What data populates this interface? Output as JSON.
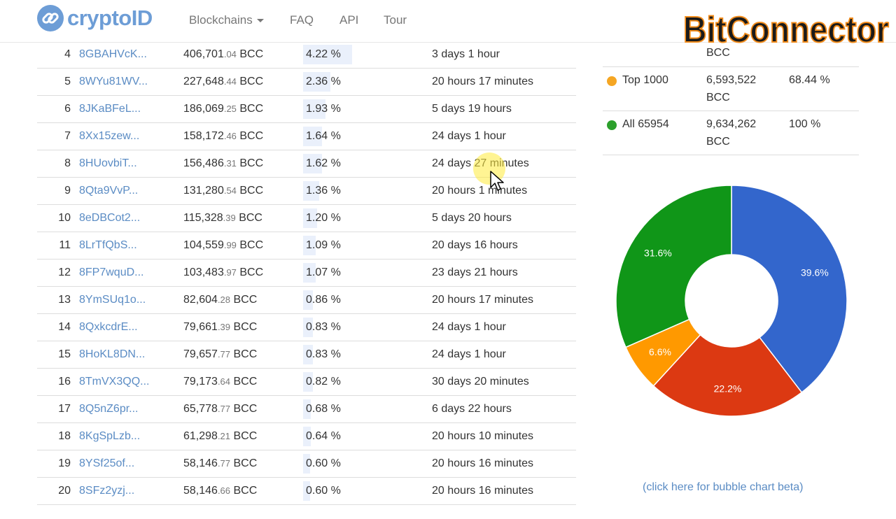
{
  "header": {
    "logo": "cryptoID",
    "nav": [
      {
        "label": "Blockchains",
        "dropdown": true
      },
      {
        "label": "FAQ"
      },
      {
        "label": "API"
      },
      {
        "label": "Tour"
      }
    ],
    "watermark": "BitConnector"
  },
  "rows": [
    {
      "rank": "4",
      "address": "8GBAHVcK...",
      "bal_int": "406,701",
      "bal_dec": ".04",
      "unit": "BCC",
      "pct": "4.22 %",
      "pct_value": 4.22,
      "time": "3 days 1 hour"
    },
    {
      "rank": "5",
      "address": "8WYu81WV...",
      "bal_int": "227,648",
      "bal_dec": ".44",
      "unit": "BCC",
      "pct": "2.36 %",
      "pct_value": 2.36,
      "time": "20 hours 17 minutes"
    },
    {
      "rank": "6",
      "address": "8JKaBFeL...",
      "bal_int": "186,069",
      "bal_dec": ".25",
      "unit": "BCC",
      "pct": "1.93 %",
      "pct_value": 1.93,
      "time": "5 days 19 hours"
    },
    {
      "rank": "7",
      "address": "8Xx15zew...",
      "bal_int": "158,172",
      "bal_dec": ".46",
      "unit": "BCC",
      "pct": "1.64 %",
      "pct_value": 1.64,
      "time": "24 days 1 hour"
    },
    {
      "rank": "8",
      "address": "8HUovbiT...",
      "bal_int": "156,486",
      "bal_dec": ".31",
      "unit": "BCC",
      "pct": "1.62 %",
      "pct_value": 1.62,
      "time": "24 days 27 minutes"
    },
    {
      "rank": "9",
      "address": "8Qta9VvP...",
      "bal_int": "131,280",
      "bal_dec": ".54",
      "unit": "BCC",
      "pct": "1.36 %",
      "pct_value": 1.36,
      "time": "20 hours 1 minutes"
    },
    {
      "rank": "10",
      "address": "8eDBCot2...",
      "bal_int": "115,328",
      "bal_dec": ".39",
      "unit": "BCC",
      "pct": "1.20 %",
      "pct_value": 1.2,
      "time": "5 days 20 hours"
    },
    {
      "rank": "11",
      "address": "8LrTfQbS...",
      "bal_int": "104,559",
      "bal_dec": ".99",
      "unit": "BCC",
      "pct": "1.09 %",
      "pct_value": 1.09,
      "time": "20 days 16 hours"
    },
    {
      "rank": "12",
      "address": "8FP7wquD...",
      "bal_int": "103,483",
      "bal_dec": ".97",
      "unit": "BCC",
      "pct": "1.07 %",
      "pct_value": 1.07,
      "time": "23 days 21 hours"
    },
    {
      "rank": "13",
      "address": "8YmSUq1o...",
      "bal_int": "82,604",
      "bal_dec": ".28",
      "unit": "BCC",
      "pct": "0.86 %",
      "pct_value": 0.86,
      "time": "20 hours 17 minutes"
    },
    {
      "rank": "14",
      "address": "8QxkcdrE...",
      "bal_int": "79,661",
      "bal_dec": ".39",
      "unit": "BCC",
      "pct": "0.83 %",
      "pct_value": 0.83,
      "time": "24 days 1 hour"
    },
    {
      "rank": "15",
      "address": "8HoKL8DN...",
      "bal_int": "79,657",
      "bal_dec": ".77",
      "unit": "BCC",
      "pct": "0.83 %",
      "pct_value": 0.83,
      "time": "24 days 1 hour"
    },
    {
      "rank": "16",
      "address": "8TmVX3QQ...",
      "bal_int": "79,173",
      "bal_dec": ".64",
      "unit": "BCC",
      "pct": "0.82 %",
      "pct_value": 0.82,
      "time": "30 days 20 minutes"
    },
    {
      "rank": "17",
      "address": "8Q5nZ6pr...",
      "bal_int": "65,778",
      "bal_dec": ".77",
      "unit": "BCC",
      "pct": "0.68 %",
      "pct_value": 0.68,
      "time": "6 days 22 hours"
    },
    {
      "rank": "18",
      "address": "8KgSpLzb...",
      "bal_int": "61,298",
      "bal_dec": ".21",
      "unit": "BCC",
      "pct": "0.64 %",
      "pct_value": 0.64,
      "time": "20 hours 10 minutes"
    },
    {
      "rank": "19",
      "address": "8YSf25of...",
      "bal_int": "58,146",
      "bal_dec": ".77",
      "unit": "BCC",
      "pct": "0.60 %",
      "pct_value": 0.6,
      "time": "20 hours 16 minutes"
    },
    {
      "rank": "20",
      "address": "8SFz2yzj...",
      "bal_int": "58,146",
      "bal_dec": ".66",
      "unit": "BCC",
      "pct": "0.60 %",
      "pct_value": 0.6,
      "time": "20 hours 16 minutes"
    }
  ],
  "summary": {
    "partial_unit": "BCC",
    "items": [
      {
        "label": "Top 1000",
        "value": "6,593,522",
        "unit": "BCC",
        "pct": "68.44 %",
        "color": "#f5a623"
      },
      {
        "label": "All 65954",
        "value": "9,634,262",
        "unit": "BCC",
        "pct": "100 %",
        "color": "#2ca02c"
      }
    ]
  },
  "chart_data": {
    "type": "pie",
    "donut": true,
    "slices": [
      {
        "value": 39.6,
        "label": "39.6%",
        "color": "#3366cc"
      },
      {
        "value": 22.2,
        "label": "22.2%",
        "color": "#dc3912"
      },
      {
        "value": 6.6,
        "label": "6.6%",
        "color": "#ff9900"
      },
      {
        "value": 31.6,
        "label": "31.6%",
        "color": "#109618"
      }
    ]
  },
  "bubble_link": "(click here for bubble chart beta)"
}
